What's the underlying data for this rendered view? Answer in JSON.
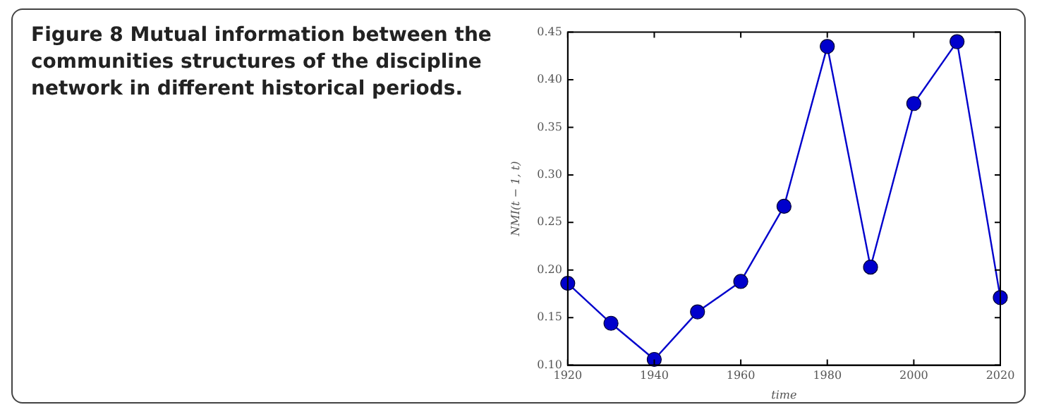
{
  "chart_data": {
    "type": "line",
    "title": "Figure 8  Mutual information between the communities structures of the discipline network in different historical periods.",
    "xlabel": "time",
    "ylabel": "NMI(t − 1, t)",
    "x": [
      1920,
      1930,
      1940,
      1950,
      1960,
      1970,
      1980,
      1990,
      2000,
      2010,
      2020
    ],
    "series": [
      {
        "color": "#0000cc",
        "values": [
          0.186,
          0.144,
          0.106,
          0.156,
          0.188,
          0.267,
          0.435,
          0.203,
          0.375,
          0.44,
          0.171
        ]
      }
    ],
    "xlim": [
      1920,
      2020
    ],
    "xticks": [
      1920,
      1940,
      1960,
      1980,
      2000,
      2020
    ],
    "ylim": [
      0.1,
      0.45
    ],
    "yticks": [
      {
        "value": 0.1,
        "label": "0.10"
      },
      {
        "value": 0.15,
        "label": "0.15"
      },
      {
        "value": 0.2,
        "label": "0.20"
      },
      {
        "value": 0.25,
        "label": "0.25"
      },
      {
        "value": 0.3,
        "label": "0.30"
      },
      {
        "value": 0.35,
        "label": "0.35"
      },
      {
        "value": 0.4,
        "label": "0.40"
      },
      {
        "value": 0.45,
        "label": "0.45"
      }
    ],
    "marker": "circle",
    "line_style": "solid",
    "grid": false,
    "legend": false
  }
}
